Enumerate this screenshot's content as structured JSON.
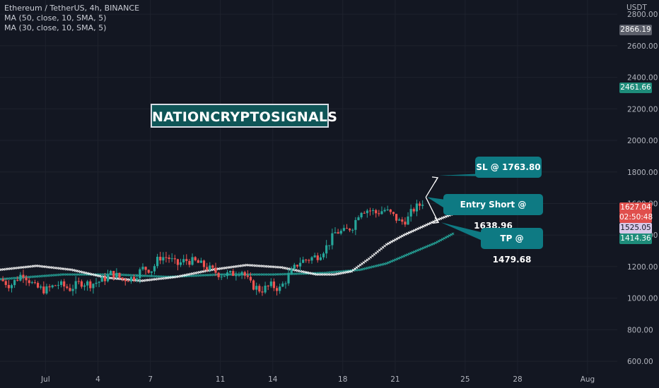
{
  "legend": {
    "symbol": "Ethereum / TetherUS, 4h, BINANCE",
    "ma1": "MA (50, close, 10, SMA, 5)",
    "ma2": "MA (30, close, 10, SMA, 5)"
  },
  "watermark": "NATIONCRYPTOSIGNALS",
  "annotations": {
    "sl": "SL @ 1763.80",
    "entry": "Entry Short @ 1638.96",
    "tp": "TP @ 1479.68"
  },
  "price_axis": {
    "currency": "USDT",
    "badges": {
      "top": "2866.19",
      "green_high": "2461.66",
      "last": "1627.04",
      "countdown": "02:50:48",
      "ma_purple": "1525.05",
      "ma_green": "1414.36"
    }
  },
  "colors": {
    "background": "#131722",
    "up": "#26a69a",
    "down": "#ef5350",
    "ma_fast": "#ffffff",
    "ma_slow": "#26a69a",
    "callout": "#0e7a83"
  },
  "chart_data": {
    "type": "candlestick",
    "y_ticks": [
      600,
      800,
      1000,
      1200,
      1400,
      1600,
      1800,
      2000,
      2200,
      2400,
      2600,
      2800
    ],
    "y_tick_labels": [
      "600.00",
      "800.00",
      "1000.00",
      "1200.00",
      "1400.00",
      "1600.00",
      "1800.00",
      "2000.00",
      "2200.00",
      "2400.00",
      "2600.00",
      "2800.00"
    ],
    "ylim": [
      520,
      2890
    ],
    "x_ticks": [
      {
        "label": "Jul",
        "day": 0
      },
      {
        "label": "4",
        "day": 3
      },
      {
        "label": "7",
        "day": 6
      },
      {
        "label": "11",
        "day": 10
      },
      {
        "label": "14",
        "day": 13
      },
      {
        "label": "18",
        "day": 17
      },
      {
        "label": "21",
        "day": 20
      },
      {
        "label": "25",
        "day": 24
      },
      {
        "label": "28",
        "day": 27
      },
      {
        "label": "Aug",
        "day": 31
      }
    ],
    "xlim": [
      -2.6,
      32.7
    ],
    "price_path": [
      [
        -2.6,
        1120
      ],
      [
        -2.0,
        1080
      ],
      [
        -1.3,
        1160
      ],
      [
        -0.6,
        1070
      ],
      [
        0.0,
        1050
      ],
      [
        0.7,
        1090
      ],
      [
        1.4,
        1060
      ],
      [
        2.0,
        1100
      ],
      [
        2.6,
        1090
      ],
      [
        3.2,
        1110
      ],
      [
        3.8,
        1160
      ],
      [
        4.4,
        1120
      ],
      [
        5.0,
        1130
      ],
      [
        5.6,
        1190
      ],
      [
        6.1,
        1180
      ],
      [
        6.5,
        1260
      ],
      [
        7.0,
        1260
      ],
      [
        7.5,
        1210
      ],
      [
        8.0,
        1240
      ],
      [
        8.6,
        1230
      ],
      [
        9.3,
        1190
      ],
      [
        10.0,
        1150
      ],
      [
        10.6,
        1150
      ],
      [
        11.2,
        1180
      ],
      [
        11.7,
        1090
      ],
      [
        12.3,
        1050
      ],
      [
        12.9,
        1080
      ],
      [
        13.4,
        1060
      ],
      [
        13.9,
        1140
      ],
      [
        14.5,
        1230
      ],
      [
        15.1,
        1250
      ],
      [
        15.6,
        1270
      ],
      [
        16.1,
        1330
      ],
      [
        16.6,
        1420
      ],
      [
        17.1,
        1420
      ],
      [
        17.6,
        1460
      ],
      [
        18.0,
        1560
      ],
      [
        18.5,
        1560
      ],
      [
        18.9,
        1540
      ],
      [
        19.4,
        1560
      ],
      [
        19.9,
        1520
      ],
      [
        20.3,
        1480
      ],
      [
        20.7,
        1500
      ],
      [
        21.0,
        1560
      ],
      [
        21.4,
        1590
      ],
      [
        21.7,
        1627
      ]
    ],
    "ma_fast": [
      [
        -2.6,
        1180
      ],
      [
        -0.5,
        1205
      ],
      [
        1.5,
        1180
      ],
      [
        3.5,
        1130
      ],
      [
        5.5,
        1110
      ],
      [
        7.5,
        1135
      ],
      [
        9.5,
        1180
      ],
      [
        11.5,
        1210
      ],
      [
        13.5,
        1195
      ],
      [
        15.5,
        1150
      ],
      [
        16.5,
        1150
      ],
      [
        17.5,
        1170
      ],
      [
        18.5,
        1250
      ],
      [
        19.5,
        1340
      ],
      [
        20.5,
        1400
      ],
      [
        21.5,
        1450
      ],
      [
        22.5,
        1500
      ],
      [
        23.4,
        1538
      ]
    ],
    "ma_slow": [
      [
        -2.6,
        1120
      ],
      [
        1.0,
        1150
      ],
      [
        4.0,
        1150
      ],
      [
        7.0,
        1135
      ],
      [
        10.0,
        1150
      ],
      [
        13.0,
        1150
      ],
      [
        16.0,
        1160
      ],
      [
        18.0,
        1180
      ],
      [
        19.5,
        1220
      ],
      [
        21.0,
        1290
      ],
      [
        22.3,
        1350
      ],
      [
        23.4,
        1414
      ]
    ]
  }
}
